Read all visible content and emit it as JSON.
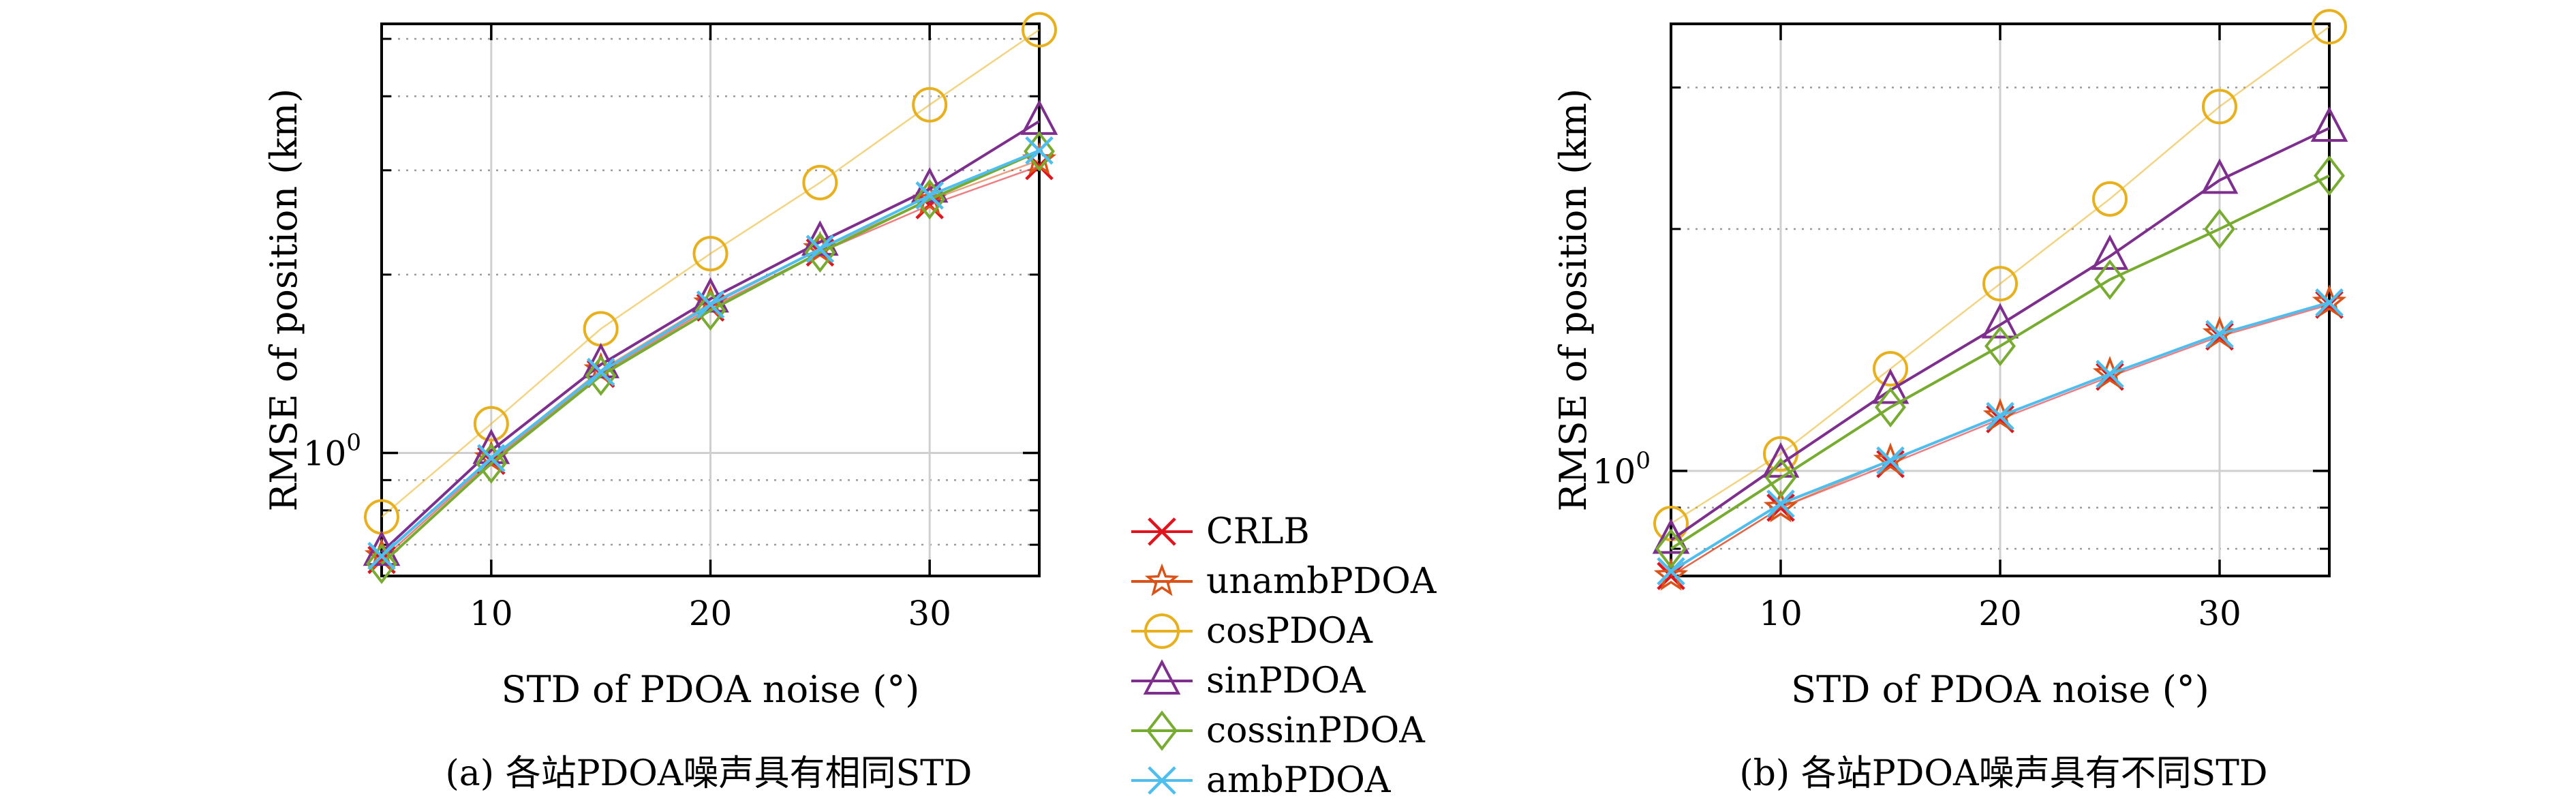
{
  "chart_data": [
    {
      "type": "line",
      "x": [
        5,
        10,
        15,
        20,
        25,
        30,
        35
      ],
      "xlim": [
        5,
        35
      ],
      "ylim": [
        0.62,
        5.3
      ],
      "yscale": "log",
      "xticks": [
        "10",
        "20",
        "30"
      ],
      "ytick_major": "10^0",
      "xlabel": "STD of PDOA noise (°)",
      "ylabel": "RMSE of position (km)",
      "caption": "(a) 各站PDOA噪声具有相同STD",
      "grid": true,
      "series": [
        {
          "name": "CRLB",
          "values": [
            0.66,
            0.97,
            1.36,
            1.76,
            2.18,
            2.62,
            3.05
          ]
        },
        {
          "name": "unambPDOA",
          "values": [
            0.67,
            0.98,
            1.38,
            1.79,
            2.21,
            2.67,
            3.12
          ]
        },
        {
          "name": "cosPDOA",
          "values": [
            0.78,
            1.12,
            1.62,
            2.17,
            2.86,
            3.87,
            5.18
          ]
        },
        {
          "name": "sinPDOA",
          "values": [
            0.68,
            1.01,
            1.41,
            1.82,
            2.27,
            2.79,
            3.63
          ]
        },
        {
          "name": "cossinPDOA",
          "values": [
            0.65,
            0.96,
            1.35,
            1.74,
            2.18,
            2.68,
            3.23
          ]
        },
        {
          "name": "ambPDOA",
          "values": [
            0.67,
            0.98,
            1.37,
            1.78,
            2.21,
            2.72,
            3.24
          ]
        }
      ]
    },
    {
      "type": "line",
      "x": [
        5,
        10,
        15,
        20,
        25,
        30,
        35
      ],
      "xlim": [
        5,
        35
      ],
      "ylim": [
        0.74,
        3.6
      ],
      "yscale": "log",
      "xticks": [
        "10",
        "20",
        "30"
      ],
      "ytick_major": "10^0",
      "xlabel": "STD of PDOA noise (°)",
      "ylabel": "RMSE of position (km)",
      "caption": "(b) 各站PDOA噪声具有不同STD",
      "grid": true,
      "series": [
        {
          "name": "CRLB",
          "values": [
            0.74,
            0.9,
            1.02,
            1.16,
            1.31,
            1.47,
            1.61
          ]
        },
        {
          "name": "unambPDOA",
          "values": [
            0.74,
            0.9,
            1.03,
            1.17,
            1.32,
            1.48,
            1.62
          ]
        },
        {
          "name": "cosPDOA",
          "values": [
            0.86,
            1.05,
            1.34,
            1.71,
            2.18,
            2.84,
            3.57
          ]
        },
        {
          "name": "sinPDOA",
          "values": [
            0.82,
            1.02,
            1.26,
            1.52,
            1.85,
            2.3,
            2.67
          ]
        },
        {
          "name": "cossinPDOA",
          "values": [
            0.8,
            0.98,
            1.2,
            1.43,
            1.73,
            2.0,
            2.33
          ]
        },
        {
          "name": "ambPDOA",
          "values": [
            0.75,
            0.91,
            1.03,
            1.17,
            1.32,
            1.48,
            1.62
          ]
        }
      ]
    }
  ],
  "legend": {
    "entries": [
      {
        "label": "CRLB",
        "color": "#e0141c",
        "marker": "x"
      },
      {
        "label": "unambPDOA",
        "color": "#d95319",
        "marker": "star"
      },
      {
        "label": "cosPDOA",
        "color": "#e8b01c",
        "marker": "circle"
      },
      {
        "label": "sinPDOA",
        "color": "#7e2f8e",
        "marker": "triangle"
      },
      {
        "label": "cossinPDOA",
        "color": "#77ac30",
        "marker": "diamond"
      },
      {
        "label": "ambPDOA",
        "color": "#4dbeee",
        "marker": "x"
      }
    ]
  }
}
